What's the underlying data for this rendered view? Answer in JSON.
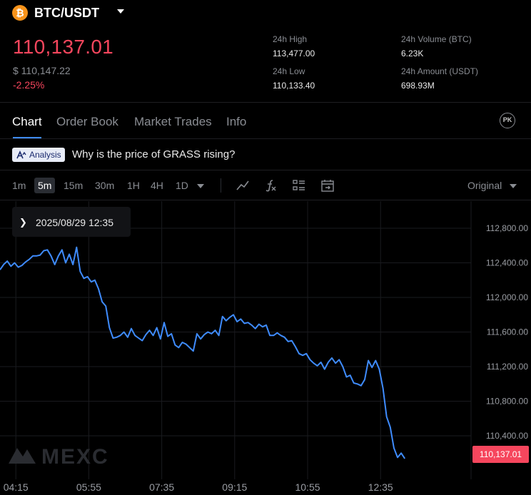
{
  "header": {
    "coin_symbol": "₿",
    "pair": "BTC/USDT",
    "last_price": "110,137.01",
    "price_usd": "$ 110,147.22",
    "change": "-2.25%",
    "high_label": "24h High",
    "high_value": "113,477.00",
    "low_label": "24h Low",
    "low_value": "110,133.40",
    "volume_label": "24h Volume (BTC)",
    "volume_value": "6.23K",
    "amount_label": "24h Amount (USDT)",
    "amount_value": "698.93M"
  },
  "tabs": [
    "Chart",
    "Order Book",
    "Market Trades",
    "Info"
  ],
  "pk_icon_label": "PK",
  "analysis": {
    "badge_label": "Analysis",
    "question": "Why is the price of GRASS rising?"
  },
  "toolbar": {
    "intervals": [
      "1m",
      "5m",
      "15m",
      "30m",
      "1H",
      "4H",
      "1D"
    ],
    "active_interval": "5m",
    "mode": "Original"
  },
  "tooltip_date": "2025/08/29 12:35",
  "colors": {
    "line": "#3f8cff",
    "down": "#f6465d",
    "accent": "#3f8cff",
    "background": "#000000"
  },
  "watermark": "MEXC",
  "chart_data": {
    "type": "line",
    "ylim": [
      110000,
      113000
    ],
    "y_ticks": [
      112800,
      112400,
      112000,
      111600,
      111200,
      110800,
      110400
    ],
    "y_tick_labels": [
      "112,800.00",
      "112,400.00",
      "112,000.00",
      "111,600.00",
      "111,200.00",
      "110,800.00",
      "110,400.00"
    ],
    "x_ticks": [
      "04:15",
      "05:55",
      "07:35",
      "09:15",
      "10:55",
      "12:35"
    ],
    "x_tick_index": [
      2,
      22,
      42,
      62,
      82,
      102
    ],
    "last_price_label": "110,137.01",
    "series": [
      {
        "values": [
          112320,
          112380,
          112420,
          112360,
          112400,
          112350,
          112370,
          112410,
          112440,
          112480,
          112480,
          112490,
          112540,
          112550,
          112480,
          112380,
          112480,
          112550,
          112400,
          112500,
          112380,
          112580,
          112300,
          112220,
          112240,
          112180,
          112200,
          112100,
          111950,
          111900,
          111650,
          111530,
          111540,
          111560,
          111600,
          111540,
          111640,
          111560,
          111530,
          111500,
          111570,
          111620,
          111560,
          111650,
          111520,
          111710,
          111550,
          111580,
          111450,
          111420,
          111480,
          111460,
          111420,
          111380,
          111580,
          111520,
          111570,
          111600,
          111580,
          111620,
          111560,
          111780,
          111730,
          111770,
          111800,
          111720,
          111750,
          111700,
          111710,
          111680,
          111640,
          111690,
          111660,
          111680,
          111560,
          111560,
          111590,
          111560,
          111540,
          111490,
          111500,
          111430,
          111350,
          111330,
          111350,
          111280,
          111240,
          111210,
          111250,
          111170,
          111250,
          111300,
          111240,
          111280,
          111200,
          111080,
          111100,
          111010,
          111000,
          110980,
          111050,
          111270,
          111190,
          111270,
          111170,
          110950,
          110620,
          110500,
          110260,
          110150,
          110200,
          110137
        ]
      }
    ]
  }
}
